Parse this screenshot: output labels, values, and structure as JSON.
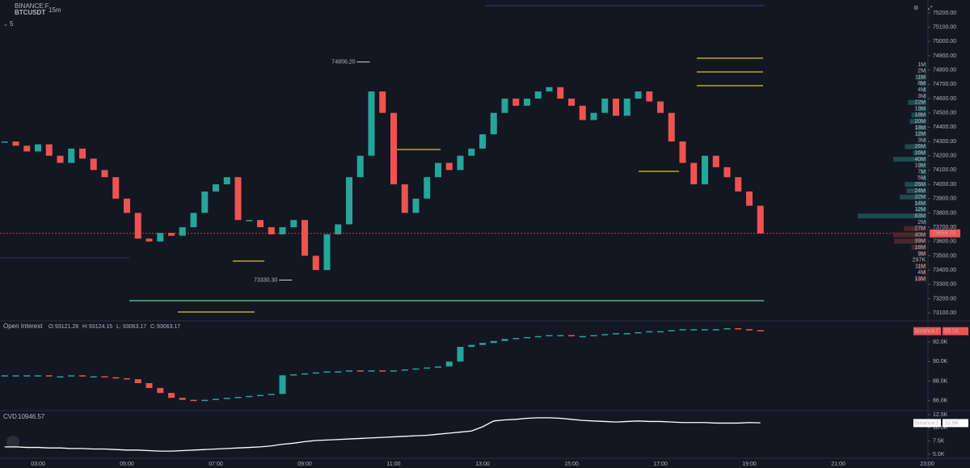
{
  "header": {
    "exchange": "BINANCE:F",
    "symbol": "BTCUSDT",
    "interval": "15m",
    "zoom": "5"
  },
  "chart_data": [
    {
      "type": "candlestick",
      "colors": {
        "up": "#26a69a",
        "down": "#ef5350"
      },
      "values": [
        74300,
        74270,
        74230,
        74280,
        74200,
        74150,
        74250,
        74180,
        74100,
        74050,
        73900,
        73800,
        73620,
        73600,
        73660,
        73640,
        73700,
        73800,
        73950,
        74000,
        74050,
        73750,
        73750,
        73700,
        73650,
        73700,
        73750,
        73500,
        73400,
        73650,
        73720,
        74050,
        74200,
        74650,
        74500,
        74000,
        73800,
        73900,
        74050,
        74150,
        74100,
        74200,
        74250,
        74350,
        74500,
        74600,
        74550,
        74600,
        74650,
        74680,
        74600,
        74550,
        74450,
        74500,
        74600,
        74480,
        74600,
        74650,
        74580,
        74500,
        74300,
        74150,
        74000,
        74200,
        74120,
        74050,
        73950,
        73850,
        73656.7
      ],
      "last_price": {
        "value": 73656.7,
        "label": "73656.70"
      },
      "annotations": [
        {
          "value": 74856.2,
          "label": "74856.20"
        },
        {
          "value": 73330.3,
          "label": "73330.30"
        }
      ],
      "ylim": [
        73050,
        75290
      ],
      "yticks": [
        {
          "value": 75200,
          "label": "75200.00"
        },
        {
          "value": 75100,
          "label": "75100.00"
        },
        {
          "value": 75000,
          "label": "75000.00"
        },
        {
          "value": 74900,
          "label": "74900.00"
        },
        {
          "value": 74800,
          "label": "74800.00"
        },
        {
          "value": 74700,
          "label": "74700.00"
        },
        {
          "value": 74600,
          "label": "74600.00"
        },
        {
          "value": 74500,
          "label": "74500.00"
        },
        {
          "value": 74400,
          "label": "74400.00"
        },
        {
          "value": 74300,
          "label": "74300.00"
        },
        {
          "value": 74200,
          "label": "74200.00"
        },
        {
          "value": 74100,
          "label": "74100.00"
        },
        {
          "value": 74000,
          "label": "74000.00"
        },
        {
          "value": 73900,
          "label": "73900.00"
        },
        {
          "value": 73800,
          "label": "73800.00"
        },
        {
          "value": 73700,
          "label": "73700.00"
        },
        {
          "value": 73600,
          "label": "73600.00"
        },
        {
          "value": 73500,
          "label": "73500.00"
        },
        {
          "value": 73400,
          "label": "73400.00"
        },
        {
          "value": 73300,
          "label": "73300.00"
        },
        {
          "value": 73200,
          "label": "73200.00"
        },
        {
          "value": 73100,
          "label": "73100.00"
        }
      ],
      "volume_profile": {
        "values": [
          1000000,
          2000000,
          11000000,
          8000000,
          4000000,
          3000000,
          22000000,
          10000000,
          18000000,
          20000000,
          13000000,
          12000000,
          3000000,
          26000000,
          16000000,
          40000000,
          10000000,
          7000000,
          5000000,
          26000000,
          24000000,
          32000000,
          14000000,
          12000000,
          83000000,
          2000000,
          27000000,
          40000000,
          39000000,
          18000000,
          9000000,
          297000,
          11000000,
          4000000,
          13000000
        ],
        "value_labels": [
          "1M",
          "2M",
          "11M",
          "8M",
          "4M",
          "3M",
          "22M",
          "10M",
          "18M",
          "20M",
          "13M",
          "12M",
          "3M",
          "26M",
          "16M",
          "40M",
          "10M",
          "7M",
          "5M",
          "26M",
          "24M",
          "32M",
          "14M",
          "12M",
          "83M",
          "2M",
          "27M",
          "40M",
          "39M",
          "18M",
          "9M",
          "297K",
          "11M",
          "4M",
          "13M"
        ]
      },
      "xticks": [
        "03:00",
        "05:00",
        "07:00",
        "09:00",
        "11:00",
        "13:00",
        "15:00",
        "17:00",
        "19:00",
        "21:00",
        "23:00"
      ]
    },
    {
      "type": "candlestick",
      "title": "Open Interest",
      "ohlc": {
        "labels": [
          "O:",
          "H:",
          "L:",
          "C:"
        ],
        "values": [
          93121.28,
          93124.15,
          93063.17,
          93063.17
        ]
      },
      "colors": {
        "up": "#26a69a",
        "down": "#ef5350"
      },
      "values": [
        88.6,
        88.6,
        88.6,
        88.6,
        88.5,
        88.5,
        88.6,
        88.5,
        88.5,
        88.4,
        88.3,
        88.2,
        87.8,
        87.3,
        86.8,
        86.3,
        86.1,
        86.0,
        86.1,
        86.2,
        86.3,
        86.4,
        86.5,
        86.6,
        86.7,
        88.6,
        88.7,
        88.8,
        88.9,
        89.0,
        89.0,
        89.1,
        89.0,
        89.1,
        89.0,
        89.1,
        89.2,
        89.3,
        89.4,
        89.5,
        90.0,
        91.5,
        91.7,
        91.9,
        92.1,
        92.3,
        92.4,
        92.5,
        92.6,
        92.7,
        92.7,
        92.6,
        92.6,
        92.7,
        92.8,
        92.9,
        92.9,
        93.0,
        93.1,
        93.1,
        93.2,
        93.3,
        93.3,
        93.3,
        93.3,
        93.4,
        93.3,
        93.2,
        93.1
      ],
      "badge": {
        "source": "binance.f",
        "value": 93.1,
        "label": "93.1K"
      },
      "ylim": [
        85.0,
        93.9
      ],
      "yticks": [
        {
          "value": 92,
          "label": "92.0K"
        },
        {
          "value": 90,
          "label": "90.0K"
        },
        {
          "value": 88,
          "label": "88.0K"
        },
        {
          "value": 86,
          "label": "86.0K"
        }
      ]
    },
    {
      "type": "line",
      "title": "CVD",
      "last": 10946.57,
      "color": "#ffffff",
      "values": [
        6.4,
        6.4,
        6.3,
        6.3,
        6.2,
        6.2,
        6.1,
        6.1,
        6.0,
        6.0,
        5.9,
        5.8,
        5.8,
        5.7,
        5.6,
        5.6,
        5.7,
        5.8,
        5.9,
        6.0,
        6.1,
        6.2,
        6.3,
        6.4,
        6.6,
        6.9,
        7.1,
        7.4,
        7.6,
        7.7,
        7.8,
        7.9,
        8.0,
        8.1,
        8.2,
        8.3,
        8.4,
        8.5,
        8.6,
        8.8,
        9.0,
        9.2,
        9.4,
        10.2,
        11.3,
        11.5,
        11.6,
        11.8,
        11.9,
        11.9,
        11.8,
        11.6,
        11.4,
        11.3,
        11.2,
        11.1,
        11.2,
        11.3,
        11.2,
        11.2,
        11.1,
        11.0,
        11.0,
        11.0,
        10.9,
        10.9,
        10.9,
        11.0,
        10.94657
      ],
      "badge": {
        "source": "binance.f",
        "value": 10.9,
        "label": "10.9K"
      },
      "ylim": [
        4.4,
        13.1
      ],
      "yticks": [
        {
          "value": 12.5,
          "label": "12.5K"
        },
        {
          "value": 10,
          "label": "10.0K"
        },
        {
          "value": 7.5,
          "label": "7.5K"
        },
        {
          "value": 5,
          "label": "5.0K"
        }
      ]
    }
  ]
}
